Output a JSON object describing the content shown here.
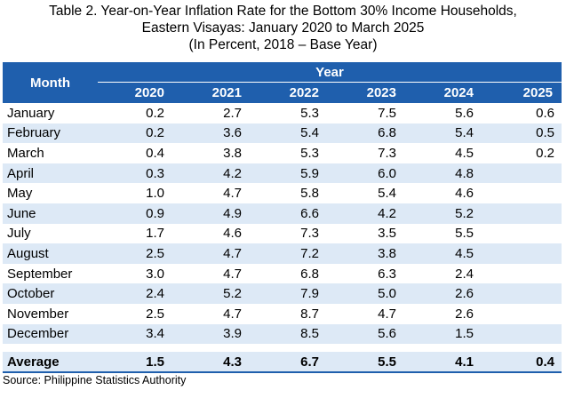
{
  "title": {
    "line1": "Table 2. Year-on-Year Inflation Rate for the Bottom 30% Income Households,",
    "line2": "Eastern Visayas: January 2020 to March 2025",
    "line3": "(In Percent, 2018 – Base Year)"
  },
  "header": {
    "month": "Month",
    "year": "Year",
    "years": [
      "2020",
      "2021",
      "2022",
      "2023",
      "2024",
      "2025"
    ]
  },
  "rows": [
    {
      "month": "January",
      "v": [
        "0.2",
        "2.7",
        "5.3",
        "7.5",
        "5.6",
        "0.6"
      ]
    },
    {
      "month": "February",
      "v": [
        "0.2",
        "3.6",
        "5.4",
        "6.8",
        "5.4",
        "0.5"
      ]
    },
    {
      "month": "March",
      "v": [
        "0.4",
        "3.8",
        "5.3",
        "7.3",
        "4.5",
        "0.2"
      ]
    },
    {
      "month": "April",
      "v": [
        "0.3",
        "4.2",
        "5.9",
        "6.0",
        "4.8",
        ""
      ]
    },
    {
      "month": "May",
      "v": [
        "1.0",
        "4.7",
        "5.8",
        "5.4",
        "4.6",
        ""
      ]
    },
    {
      "month": "June",
      "v": [
        "0.9",
        "4.9",
        "6.6",
        "4.2",
        "5.2",
        ""
      ]
    },
    {
      "month": "July",
      "v": [
        "1.7",
        "4.6",
        "7.3",
        "3.5",
        "5.5",
        ""
      ]
    },
    {
      "month": "August",
      "v": [
        "2.5",
        "4.7",
        "7.2",
        "3.8",
        "4.5",
        ""
      ]
    },
    {
      "month": "September",
      "v": [
        "3.0",
        "4.7",
        "6.8",
        "6.3",
        "2.4",
        ""
      ]
    },
    {
      "month": "October",
      "v": [
        "2.4",
        "5.2",
        "7.9",
        "5.0",
        "2.6",
        ""
      ]
    },
    {
      "month": "November",
      "v": [
        "2.5",
        "4.7",
        "8.7",
        "4.7",
        "2.6",
        ""
      ]
    },
    {
      "month": "December",
      "v": [
        "3.4",
        "3.9",
        "8.5",
        "5.6",
        "1.5",
        ""
      ]
    }
  ],
  "average": {
    "label": "Average",
    "v": [
      "1.5",
      "4.3",
      "6.7",
      "5.5",
      "4.1",
      "0.4"
    ]
  },
  "source": "Source: Philippine Statistics Authority",
  "colors": {
    "header_bg": "#1f5fad",
    "band": "#dde9f6"
  }
}
